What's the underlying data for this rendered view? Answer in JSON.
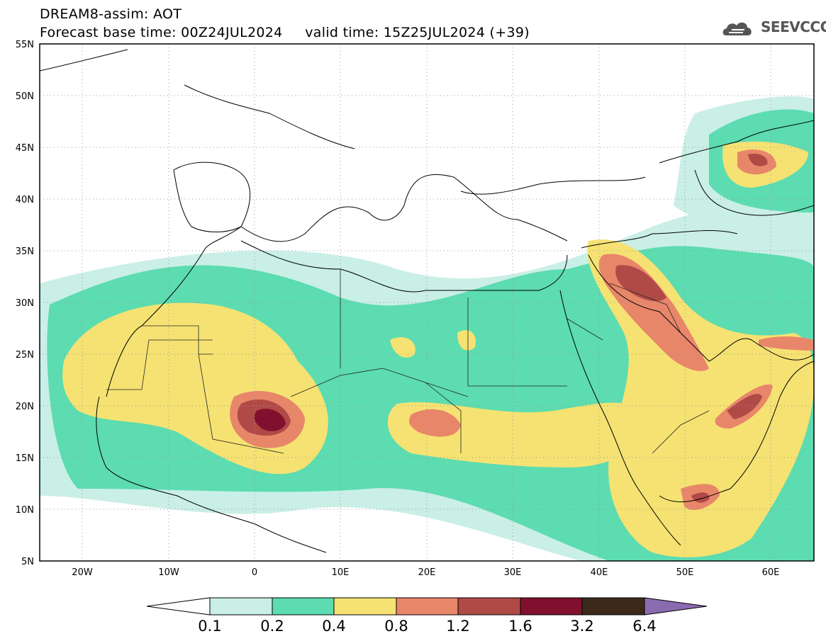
{
  "header": {
    "title_line1": "DREAM8-assim: AOT",
    "title_line2": "Forecast base time: 00Z24JUL2024     valid time: 15Z25JUL2024 (+39)",
    "logo_text": "SEEVCCC",
    "logo_icon": "cloud-icon"
  },
  "axes": {
    "lat_labels": [
      "55N",
      "50N",
      "45N",
      "40N",
      "35N",
      "30N",
      "25N",
      "20N",
      "15N",
      "10N",
      "5N"
    ],
    "lon_labels": [
      "20W",
      "10W",
      "0",
      "10E",
      "20E",
      "30E",
      "40E",
      "50E",
      "60E"
    ],
    "lat_range": [
      5,
      55
    ],
    "lon_range": [
      -25,
      65
    ]
  },
  "colorbar": {
    "labels": [
      "0.1",
      "0.2",
      "0.4",
      "0.8",
      "1.2",
      "1.6",
      "3.2",
      "6.4"
    ],
    "colors": [
      "#ffffff",
      "#c9efe6",
      "#5cdcb0",
      "#f5e272",
      "#e8866a",
      "#b04a47",
      "#80102e",
      "#3b2a1a",
      "#8a6bb0"
    ]
  }
}
